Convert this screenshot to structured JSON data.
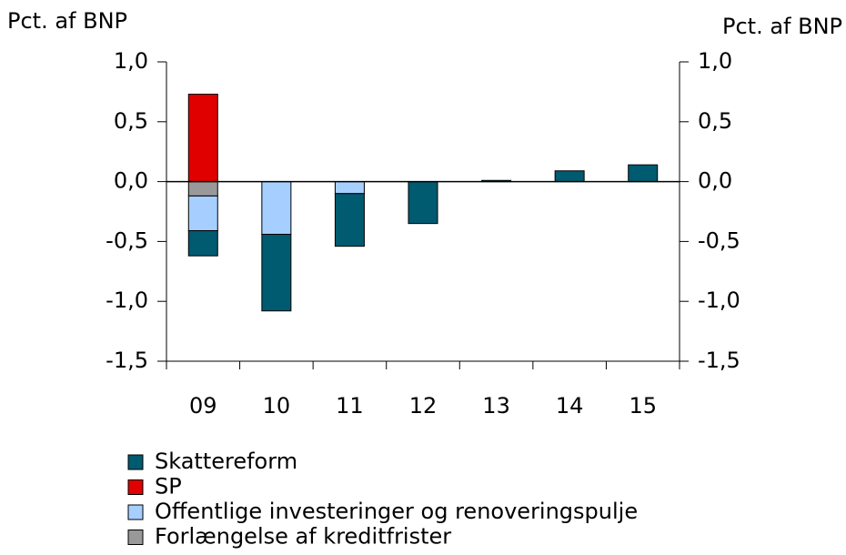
{
  "chart_data": {
    "type": "stacked_bar",
    "y_label": "Pct. af BNP",
    "y2_label": "Pct. af BNP",
    "categories": [
      "09",
      "10",
      "11",
      "12",
      "13",
      "14",
      "15"
    ],
    "series": [
      {
        "name": "Skattereform",
        "color": "#005a70",
        "values": [
          -0.21,
          -0.64,
          -0.44,
          -0.35,
          0.01,
          0.09,
          0.14
        ]
      },
      {
        "name": "SP",
        "color": "#e00000",
        "values": [
          0.73,
          null,
          null,
          null,
          null,
          null,
          null
        ]
      },
      {
        "name": "Offentlige investeringer og renoveringspulje",
        "color": "#a6cfff",
        "values": [
          -0.29,
          -0.44,
          -0.1,
          null,
          null,
          null,
          null
        ]
      },
      {
        "name": "Forlængelse af kreditfrister",
        "color": "#999999",
        "values": [
          -0.12,
          null,
          null,
          null,
          null,
          null,
          null
        ]
      }
    ],
    "ylim": [
      -1.5,
      1.0
    ],
    "yticks": [
      {
        "value": -1.5,
        "label": "-1,5"
      },
      {
        "value": -1.0,
        "label": "-1,0"
      },
      {
        "value": -0.5,
        "label": "-0,5"
      },
      {
        "value": 0.0,
        "label": "0,0"
      },
      {
        "value": 0.5,
        "label": "0,5"
      },
      {
        "value": 1.0,
        "label": "1,0"
      }
    ],
    "y2lim": [
      -1.5,
      1.0
    ],
    "y2ticks": [
      {
        "value": -1.5,
        "label": "-1,5"
      },
      {
        "value": -1.0,
        "label": "-1,0"
      },
      {
        "value": -0.5,
        "label": "-0,5"
      },
      {
        "value": 0.0,
        "label": "0,0"
      },
      {
        "value": 0.5,
        "label": "0,5"
      },
      {
        "value": 1.0,
        "label": "1,0"
      }
    ],
    "legend": "bottom"
  }
}
